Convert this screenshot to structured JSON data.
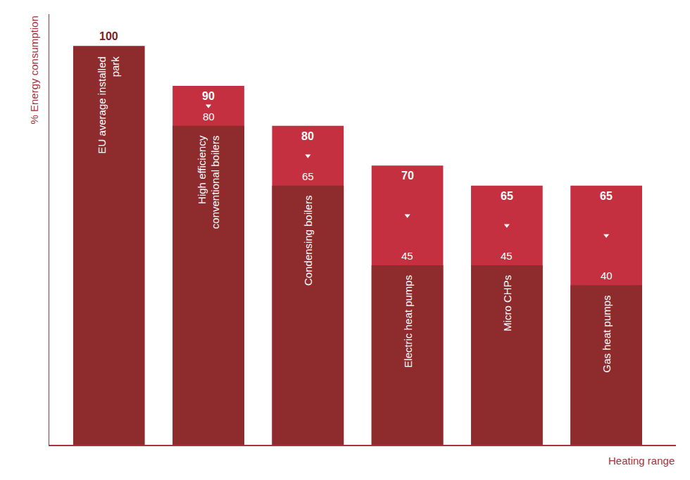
{
  "chart_data": {
    "type": "bar",
    "x_label": "Heating range",
    "y_label": "% Energy consumption",
    "categories": [
      "EU average installed park",
      "High efficiency conventional boilers",
      "Condensing boilers",
      "Electric heat pumps",
      "Micro CHPs",
      "Gas heat pumps"
    ],
    "values": [
      100,
      90,
      80,
      70,
      65,
      65
    ],
    "low_values": [
      null,
      80,
      65,
      45,
      45,
      40
    ],
    "color": "#8e2b2d",
    "ylim": [
      0,
      108
    ],
    "tick_labels": false,
    "data_labels": true,
    "grid": false
  }
}
